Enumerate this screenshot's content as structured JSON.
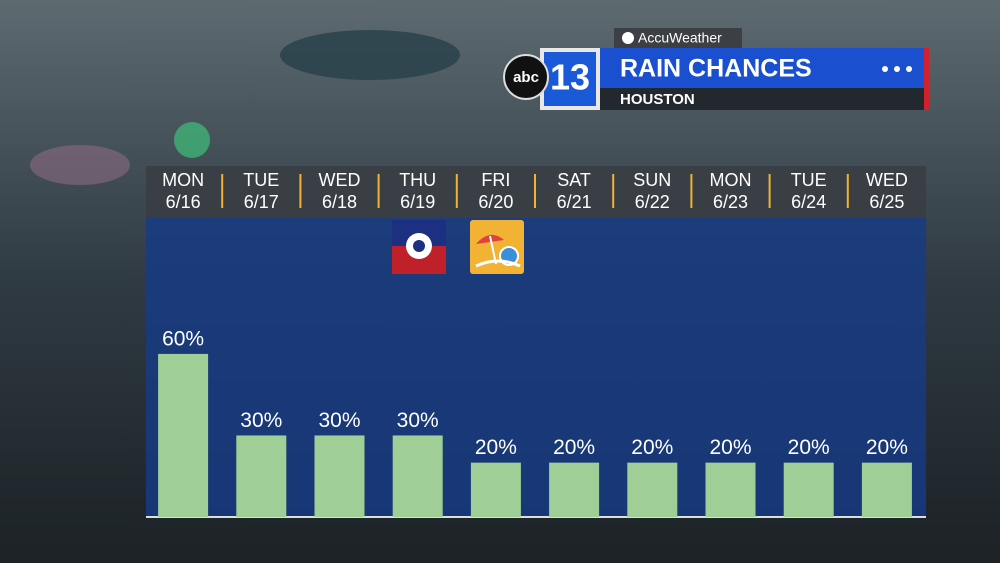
{
  "chart_data": {
    "type": "bar",
    "title": "RAIN CHANCES",
    "subtitle": "HOUSTON",
    "source": "AccuWeather",
    "network": "abc",
    "channel": "13",
    "categories": [
      "MON",
      "TUE",
      "WED",
      "THU",
      "FRI",
      "SAT",
      "SUN",
      "MON",
      "TUE",
      "WED"
    ],
    "dates": [
      "6/16",
      "6/17",
      "6/18",
      "6/19",
      "6/20",
      "6/21",
      "6/22",
      "6/23",
      "6/24",
      "6/25"
    ],
    "values": [
      60,
      30,
      30,
      30,
      20,
      20,
      20,
      20,
      20,
      20
    ],
    "value_labels": [
      "60%",
      "30%",
      "30%",
      "30%",
      "20%",
      "20%",
      "20%",
      "20%",
      "20%",
      "20%"
    ],
    "color": "#9fcf97",
    "ylim": [
      0,
      110
    ]
  }
}
